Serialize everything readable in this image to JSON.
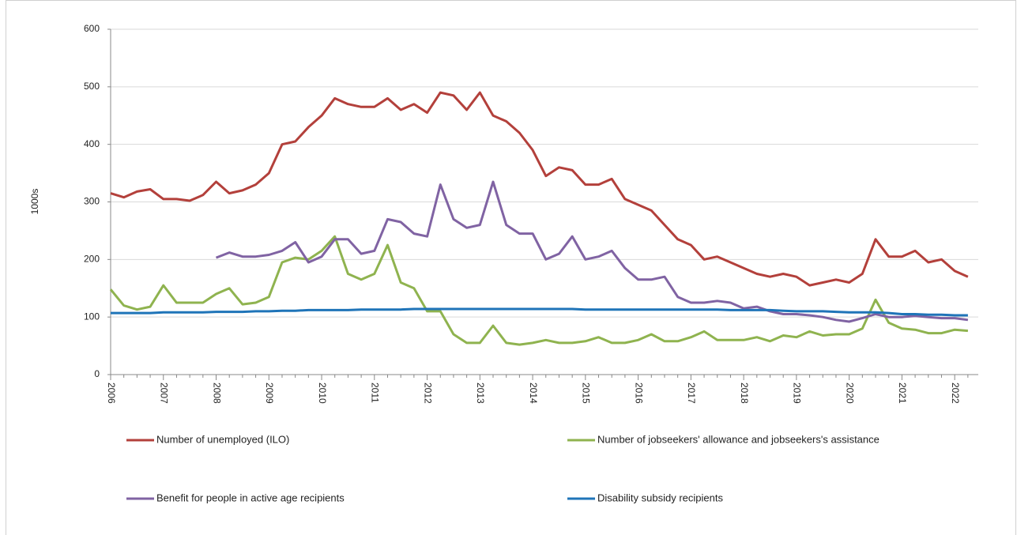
{
  "chart_data": {
    "type": "line",
    "y_label": "1000s",
    "categories": [
      "2006",
      null,
      null,
      null,
      "2007",
      null,
      null,
      null,
      "2008",
      null,
      null,
      null,
      "2009",
      null,
      null,
      null,
      "2010",
      null,
      null,
      null,
      "2011",
      null,
      null,
      null,
      "2012",
      null,
      null,
      null,
      "2013",
      null,
      null,
      null,
      "2014",
      null,
      null,
      null,
      "2015",
      null,
      null,
      null,
      "2016",
      null,
      null,
      null,
      "2017",
      null,
      null,
      null,
      "2018",
      null,
      null,
      null,
      "2019",
      null,
      null,
      null,
      "2020",
      null,
      null,
      null,
      "2021",
      null,
      null,
      null,
      "2022",
      null
    ],
    "ylim": [
      0,
      600
    ],
    "yticks": [
      0,
      100,
      200,
      300,
      400,
      500,
      600
    ],
    "grid": true,
    "series": [
      {
        "name": "Number of unemployed (ILO)",
        "color": "#b3403b",
        "values": [
          315,
          308,
          318,
          322,
          305,
          305,
          302,
          312,
          335,
          315,
          320,
          330,
          350,
          400,
          405,
          430,
          450,
          480,
          470,
          465,
          465,
          480,
          460,
          470,
          455,
          490,
          485,
          460,
          490,
          450,
          440,
          420,
          390,
          345,
          360,
          355,
          330,
          330,
          340,
          305,
          295,
          285,
          260,
          235,
          225,
          200,
          205,
          195,
          185,
          175,
          170,
          175,
          170,
          155,
          160,
          165,
          160,
          175,
          235,
          205,
          205,
          215,
          195,
          200,
          180,
          170
        ]
      },
      {
        "name": "Number of jobseekers' allowance and jobseekers's assistance",
        "color": "#8fb34f",
        "values": [
          148,
          120,
          113,
          118,
          155,
          125,
          125,
          125,
          140,
          150,
          122,
          125,
          135,
          195,
          203,
          200,
          215,
          240,
          175,
          165,
          175,
          225,
          160,
          150,
          110,
          110,
          70,
          55,
          55,
          85,
          55,
          52,
          55,
          60,
          55,
          55,
          58,
          65,
          55,
          55,
          60,
          70,
          58,
          58,
          65,
          75,
          60,
          60,
          60,
          65,
          58,
          68,
          65,
          75,
          68,
          70,
          70,
          80,
          130,
          90,
          80,
          78,
          72,
          72,
          78,
          76
        ]
      },
      {
        "name": "Benefit for people in active age recipients",
        "color": "#8063a3",
        "values": [
          null,
          null,
          null,
          null,
          null,
          null,
          null,
          null,
          203,
          212,
          205,
          205,
          208,
          215,
          230,
          195,
          205,
          235,
          235,
          210,
          215,
          270,
          265,
          245,
          240,
          330,
          270,
          255,
          260,
          335,
          260,
          245,
          245,
          200,
          210,
          240,
          200,
          205,
          215,
          185,
          165,
          165,
          170,
          135,
          125,
          125,
          128,
          125,
          115,
          118,
          110,
          105,
          105,
          103,
          100,
          95,
          92,
          98,
          105,
          100,
          100,
          102,
          100,
          98,
          98,
          95
        ]
      },
      {
        "name": "Disability subsidy recipients",
        "color": "#1f74b8",
        "values": [
          107,
          107,
          107,
          107,
          108,
          108,
          108,
          108,
          109,
          109,
          109,
          110,
          110,
          111,
          111,
          112,
          112,
          112,
          112,
          113,
          113,
          113,
          113,
          114,
          114,
          114,
          114,
          114,
          114,
          114,
          114,
          114,
          114,
          114,
          114,
          114,
          113,
          113,
          113,
          113,
          113,
          113,
          113,
          113,
          113,
          113,
          113,
          112,
          112,
          112,
          112,
          111,
          110,
          110,
          110,
          109,
          108,
          108,
          108,
          107,
          105,
          105,
          104,
          104,
          103,
          103
        ]
      }
    ]
  }
}
